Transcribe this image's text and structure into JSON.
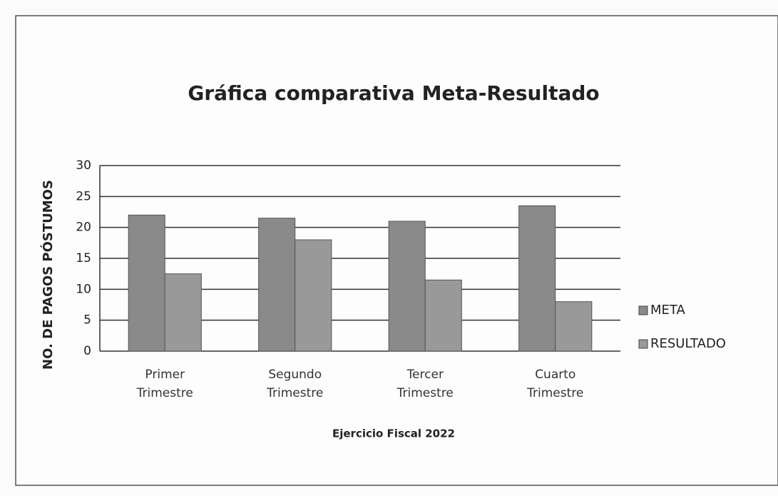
{
  "chart_data": {
    "type": "bar",
    "title": "Gráfica comparativa Meta-Resultado",
    "x_label": "Ejercicio Fiscal 2022",
    "y_label": "NO. DE PAGOS PÓSTUMOS",
    "categories": [
      "Primer Trimestre",
      "Segundo Trimestre",
      "Tercer Trimestre",
      "Cuarto Trimestre"
    ],
    "series": [
      {
        "name": "META",
        "color": "#8a8a8a",
        "values": [
          22,
          21.5,
          21,
          23.5
        ]
      },
      {
        "name": "RESULTADO",
        "color": "#999999",
        "values": [
          12.5,
          18,
          11.5,
          8
        ]
      }
    ],
    "ylim": [
      0,
      30
    ],
    "yticks": [
      0,
      5,
      10,
      15,
      20,
      25,
      30
    ],
    "grid": true,
    "legend": "right"
  }
}
